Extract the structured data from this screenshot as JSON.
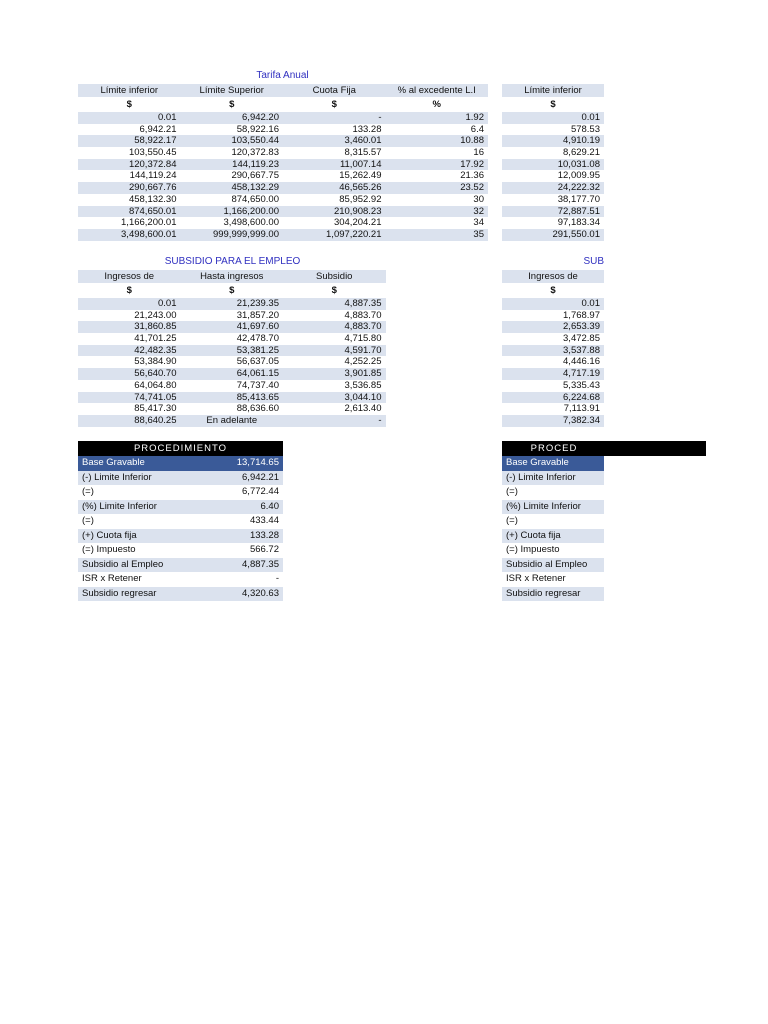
{
  "tarifa": {
    "title": "Tarifa Anual",
    "headers": [
      "Límite inferior",
      "Límite Superior",
      "Cuota Fija",
      "% al excedente L.I"
    ],
    "units": [
      "$",
      "$",
      "$",
      "%"
    ],
    "rows": [
      [
        "0.01",
        "6,942.20",
        "-",
        "1.92"
      ],
      [
        "6,942.21",
        "58,922.16",
        "133.28",
        "6.4"
      ],
      [
        "58,922.17",
        "103,550.44",
        "3,460.01",
        "10.88"
      ],
      [
        "103,550.45",
        "120,372.83",
        "8,315.57",
        "16"
      ],
      [
        "120,372.84",
        "144,119.23",
        "11,007.14",
        "17.92"
      ],
      [
        "144,119.24",
        "290,667.75",
        "15,262.49",
        "21.36"
      ],
      [
        "290,667.76",
        "458,132.29",
        "46,565.26",
        "23.52"
      ],
      [
        "458,132.30",
        "874,650.00",
        "85,952.92",
        "30"
      ],
      [
        "874,650.01",
        "1,166,200.00",
        "210,908.23",
        "32"
      ],
      [
        "1,166,200.01",
        "3,498,600.00",
        "304,204.21",
        "34"
      ],
      [
        "3,498,600.01",
        "999,999,999.00",
        "1,097,220.21",
        "35"
      ]
    ]
  },
  "tarifa_right": {
    "headers": [
      "Límite inferior"
    ],
    "units": [
      "$"
    ],
    "rows": [
      [
        "0.01"
      ],
      [
        "578.53"
      ],
      [
        "4,910.19"
      ],
      [
        "8,629.21"
      ],
      [
        "10,031.08"
      ],
      [
        "12,009.95"
      ],
      [
        "24,222.32"
      ],
      [
        "38,177.70"
      ],
      [
        "72,887.51"
      ],
      [
        "97,183.34"
      ],
      [
        "291,550.01"
      ]
    ]
  },
  "subsidio": {
    "title": "SUBSIDIO PARA EL EMPLEO",
    "headers": [
      "Ingresos de",
      "Hasta ingresos",
      "Subsidio"
    ],
    "units": [
      "$",
      "$",
      "$"
    ],
    "rows": [
      [
        "0.01",
        "21,239.35",
        "4,887.35"
      ],
      [
        "21,243.00",
        "31,857.20",
        "4,883.70"
      ],
      [
        "31,860.85",
        "41,697.60",
        "4,883.70"
      ],
      [
        "41,701.25",
        "42,478.70",
        "4,715.80"
      ],
      [
        "42,482.35",
        "53,381.25",
        "4,591.70"
      ],
      [
        "53,384.90",
        "56,637.05",
        "4,252.25"
      ],
      [
        "56,640.70",
        "64,061.15",
        "3,901.85"
      ],
      [
        "64,064.80",
        "74,737.40",
        "3,536.85"
      ],
      [
        "74,741.05",
        "85,413.65",
        "3,044.10"
      ],
      [
        "85,417.30",
        "88,636.60",
        "2,613.40"
      ],
      [
        "88,640.25",
        "En adelante",
        "-"
      ]
    ]
  },
  "subsidio_right": {
    "title": "SUB",
    "headers": [
      "Ingresos de"
    ],
    "units": [
      "$"
    ],
    "rows": [
      [
        "0.01"
      ],
      [
        "1,768.97"
      ],
      [
        "2,653.39"
      ],
      [
        "3,472.85"
      ],
      [
        "3,537.88"
      ],
      [
        "4,446.16"
      ],
      [
        "4,717.19"
      ],
      [
        "5,335.43"
      ],
      [
        "6,224.68"
      ],
      [
        "7,113.91"
      ],
      [
        "7,382.34"
      ]
    ]
  },
  "procedimiento": {
    "title": "PROCEDIMIENTO",
    "rows": [
      [
        "Base Gravable",
        "13,714.65"
      ],
      [
        "(-) Limite Inferior",
        "6,942.21"
      ],
      [
        "(=)",
        "6,772.44"
      ],
      [
        "(%) Limite Inferior",
        "6.40"
      ],
      [
        "(=)",
        "433.44"
      ],
      [
        "(+) Cuota fija",
        "133.28"
      ],
      [
        "(=) Impuesto",
        "566.72"
      ],
      [
        "Subsidio al Empleo",
        "4,887.35"
      ],
      [
        "ISR x Retener",
        "-"
      ],
      [
        "Subsidio regresar",
        "4,320.63"
      ]
    ]
  },
  "procedimiento_right": {
    "title": "PROCED",
    "rows": [
      [
        "Base Gravable"
      ],
      [
        "(-) Limite Inferior"
      ],
      [
        "(=)"
      ],
      [
        "(%) Limite Inferior"
      ],
      [
        "(=)"
      ],
      [
        "(+) Cuota fija"
      ],
      [
        "(=) Impuesto"
      ],
      [
        "Subsidio al Empleo"
      ],
      [
        "ISR x Retener"
      ],
      [
        "Subsidio regresar"
      ]
    ]
  },
  "colors": {
    "shade": "#dbe2ee",
    "highlight": "#3a5a98",
    "title": "#3030c0"
  }
}
